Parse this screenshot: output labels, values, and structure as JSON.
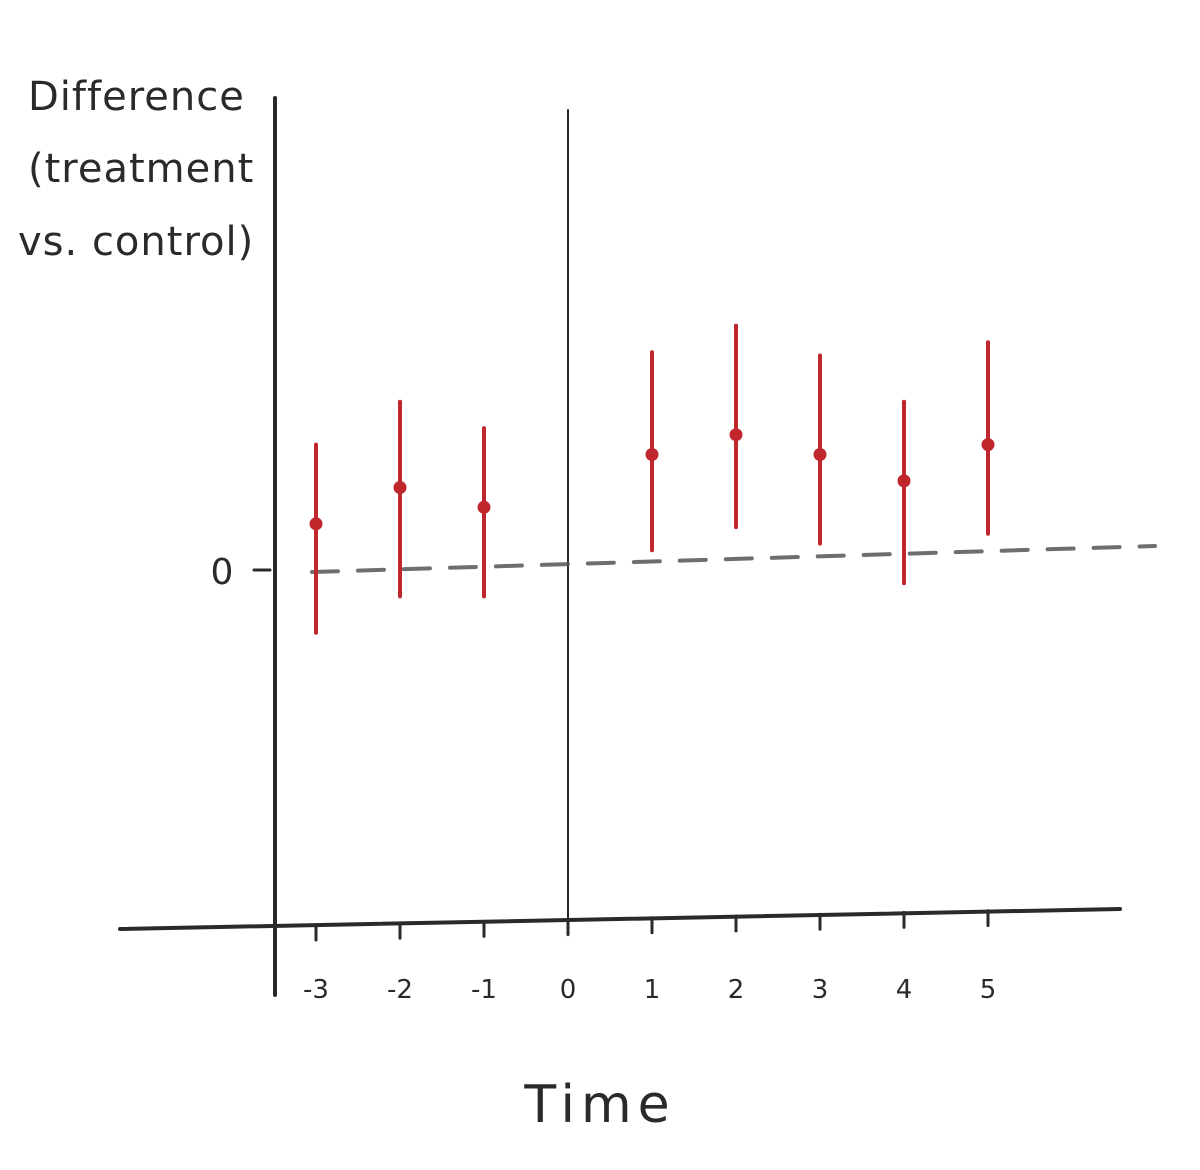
{
  "chart_data": {
    "type": "scatter",
    "subtype": "event-study point estimates with confidence intervals",
    "ylabel_lines": [
      "Difference",
      "(treatment",
      "vs. control)"
    ],
    "xlabel": "Time",
    "y_tick_labels": [
      "0"
    ],
    "x": [
      -3,
      -2,
      -1,
      1,
      2,
      3,
      4,
      5
    ],
    "x_tick_labels": [
      "-3",
      "-2",
      "-1",
      "0",
      "1",
      "2",
      "3",
      "4",
      "5"
    ],
    "x_ticks": [
      -3,
      -2,
      -1,
      0,
      1,
      2,
      3,
      4,
      5
    ],
    "estimate": [
      0.14,
      0.25,
      0.19,
      0.35,
      0.41,
      0.35,
      0.27,
      0.38
    ],
    "ci_lower": [
      -0.19,
      -0.08,
      -0.08,
      0.06,
      0.13,
      0.08,
      -0.04,
      0.11
    ],
    "ci_upper": [
      0.38,
      0.51,
      0.43,
      0.66,
      0.74,
      0.65,
      0.51,
      0.69
    ],
    "reference_line": {
      "y": 0,
      "style": "dashed"
    },
    "vertical_line": {
      "x": 0
    },
    "xlim": [
      -3.5,
      6.5
    ],
    "ylim": [
      -1.15,
      1.5
    ],
    "grid": false,
    "colors": {
      "points": "#c0272d",
      "axes": "#2a2a2a",
      "zero_line": "#555555"
    }
  }
}
